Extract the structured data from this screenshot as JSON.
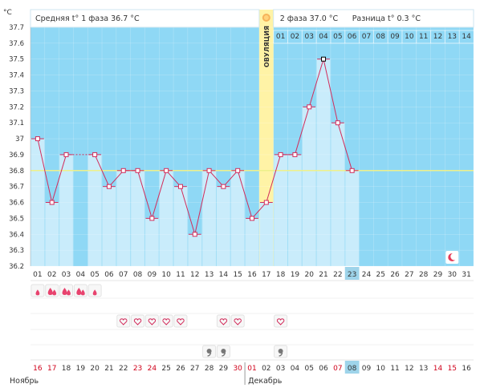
{
  "chart_data": {
    "type": "line",
    "unit_label": "°C",
    "y_range": [
      36.2,
      37.7
    ],
    "y_ticks": [
      "37.7",
      "37.6",
      "37.5",
      "37.4",
      "37.3",
      "37.2",
      "37.1",
      "37",
      "36.9",
      "36.8",
      "36.7",
      "36.6",
      "36.5",
      "36.4",
      "36.3",
      "36.2"
    ],
    "cycle_days": [
      "01",
      "02",
      "03",
      "04",
      "05",
      "06",
      "07",
      "08",
      "09",
      "10",
      "11",
      "12",
      "13",
      "14",
      "15",
      "16",
      "17",
      "18",
      "19",
      "20",
      "21",
      "22",
      "23",
      "24",
      "25",
      "26",
      "27",
      "28",
      "29",
      "30",
      "31"
    ],
    "temperatures": [
      37.0,
      36.6,
      36.9,
      null,
      36.9,
      36.7,
      36.8,
      36.8,
      36.5,
      36.8,
      36.7,
      36.4,
      36.8,
      36.7,
      36.8,
      36.5,
      36.6,
      36.9,
      36.9,
      37.2,
      37.5,
      37.1,
      36.8,
      null,
      null,
      null,
      null,
      null,
      null,
      null,
      null
    ],
    "coverline": 36.8,
    "ovulation_day": 17,
    "ovulation_label": "ОВУЛЯЦИЯ",
    "phase1_label": "Средняя t° 1 фаза 36.7 °C",
    "phase2_label": "2 фаза 37.0 °C",
    "diff_label": "Разница t° 0.3 °C",
    "phase2_days": [
      "01",
      "02",
      "03",
      "04",
      "05",
      "06",
      "07",
      "08",
      "09",
      "10",
      "11",
      "12",
      "13",
      "14"
    ],
    "current_day_index": 23,
    "icons": {
      "ovulation": "sun-icon",
      "moon_day": 30,
      "moon": "moon-icon",
      "drops": [
        {
          "day": 1,
          "size": "small"
        },
        {
          "day": 2,
          "size": "big"
        },
        {
          "day": 3,
          "size": "big"
        },
        {
          "day": 4,
          "size": "big"
        },
        {
          "day": 5,
          "size": "small"
        }
      ],
      "hearts": [
        7,
        8,
        9,
        10,
        11,
        14,
        15,
        18
      ],
      "notes": [
        13,
        14,
        18
      ]
    },
    "dates": [
      "16",
      "17",
      "18",
      "19",
      "20",
      "21",
      "22",
      "23",
      "24",
      "25",
      "26",
      "27",
      "28",
      "29",
      "30",
      "01",
      "02",
      "03",
      "04",
      "05",
      "06",
      "07",
      "08",
      "09",
      "10",
      "11",
      "12",
      "13",
      "14",
      "15",
      "16"
    ],
    "date_colors": [
      "#d0021b",
      "#d0021b",
      "#333333",
      "#333333",
      "#333333",
      "#333333",
      "#333333",
      "#d0021b",
      "#d0021b",
      "#333333",
      "#333333",
      "#333333",
      "#333333",
      "#333333",
      "#d0021b",
      "#d0021b",
      "#333333",
      "#333333",
      "#333333",
      "#333333",
      "#333333",
      "#d0021b",
      "#333333",
      "#333333",
      "#333333",
      "#333333",
      "#333333",
      "#333333",
      "#d0021b",
      "#d0021b",
      "#333333"
    ],
    "month_left": "Ноябрь",
    "month_right": "Декабрь"
  },
  "colors": {
    "bg_blue": "#8fd8f5",
    "bar": "#c9ecfb",
    "line": "#d22c5b",
    "coverline": "#eef08a",
    "ovulation": "#fff3a6",
    "current_day": "#9ed4ea"
  }
}
